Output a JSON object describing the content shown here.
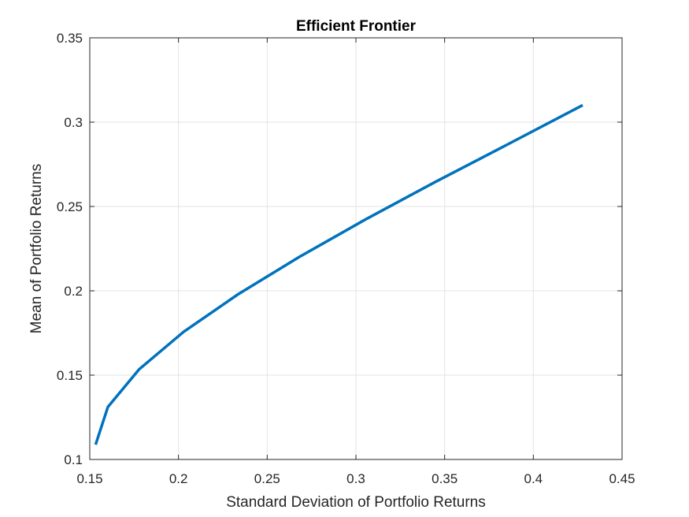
{
  "chart_data": {
    "type": "line",
    "title": "Efficient Frontier",
    "xlabel": "Standard Deviation of Portfolio Returns",
    "ylabel": "Mean of Portfolio Returns",
    "xlim": [
      0.15,
      0.45
    ],
    "ylim": [
      0.1,
      0.35
    ],
    "x_ticks": [
      0.15,
      0.2,
      0.25,
      0.3,
      0.35,
      0.4,
      0.45
    ],
    "y_ticks": [
      0.1,
      0.15,
      0.2,
      0.25,
      0.3,
      0.35
    ],
    "x_tick_labels": [
      "0.15",
      "0.2",
      "0.25",
      "0.3",
      "0.35",
      "0.4",
      "0.45"
    ],
    "y_tick_labels": [
      "0.1",
      "0.15",
      "0.2",
      "0.25",
      "0.3",
      "0.35"
    ],
    "grid": true,
    "series": [
      {
        "color": "#0072bd",
        "x": [
          0.1533,
          0.1602,
          0.1778,
          0.2028,
          0.2335,
          0.2681,
          0.3055,
          0.3448,
          0.3857,
          0.4278
        ],
        "y": [
          0.1088,
          0.1311,
          0.1534,
          0.1756,
          0.1979,
          0.2201,
          0.2424,
          0.2646,
          0.2869,
          0.3101
        ]
      }
    ]
  }
}
